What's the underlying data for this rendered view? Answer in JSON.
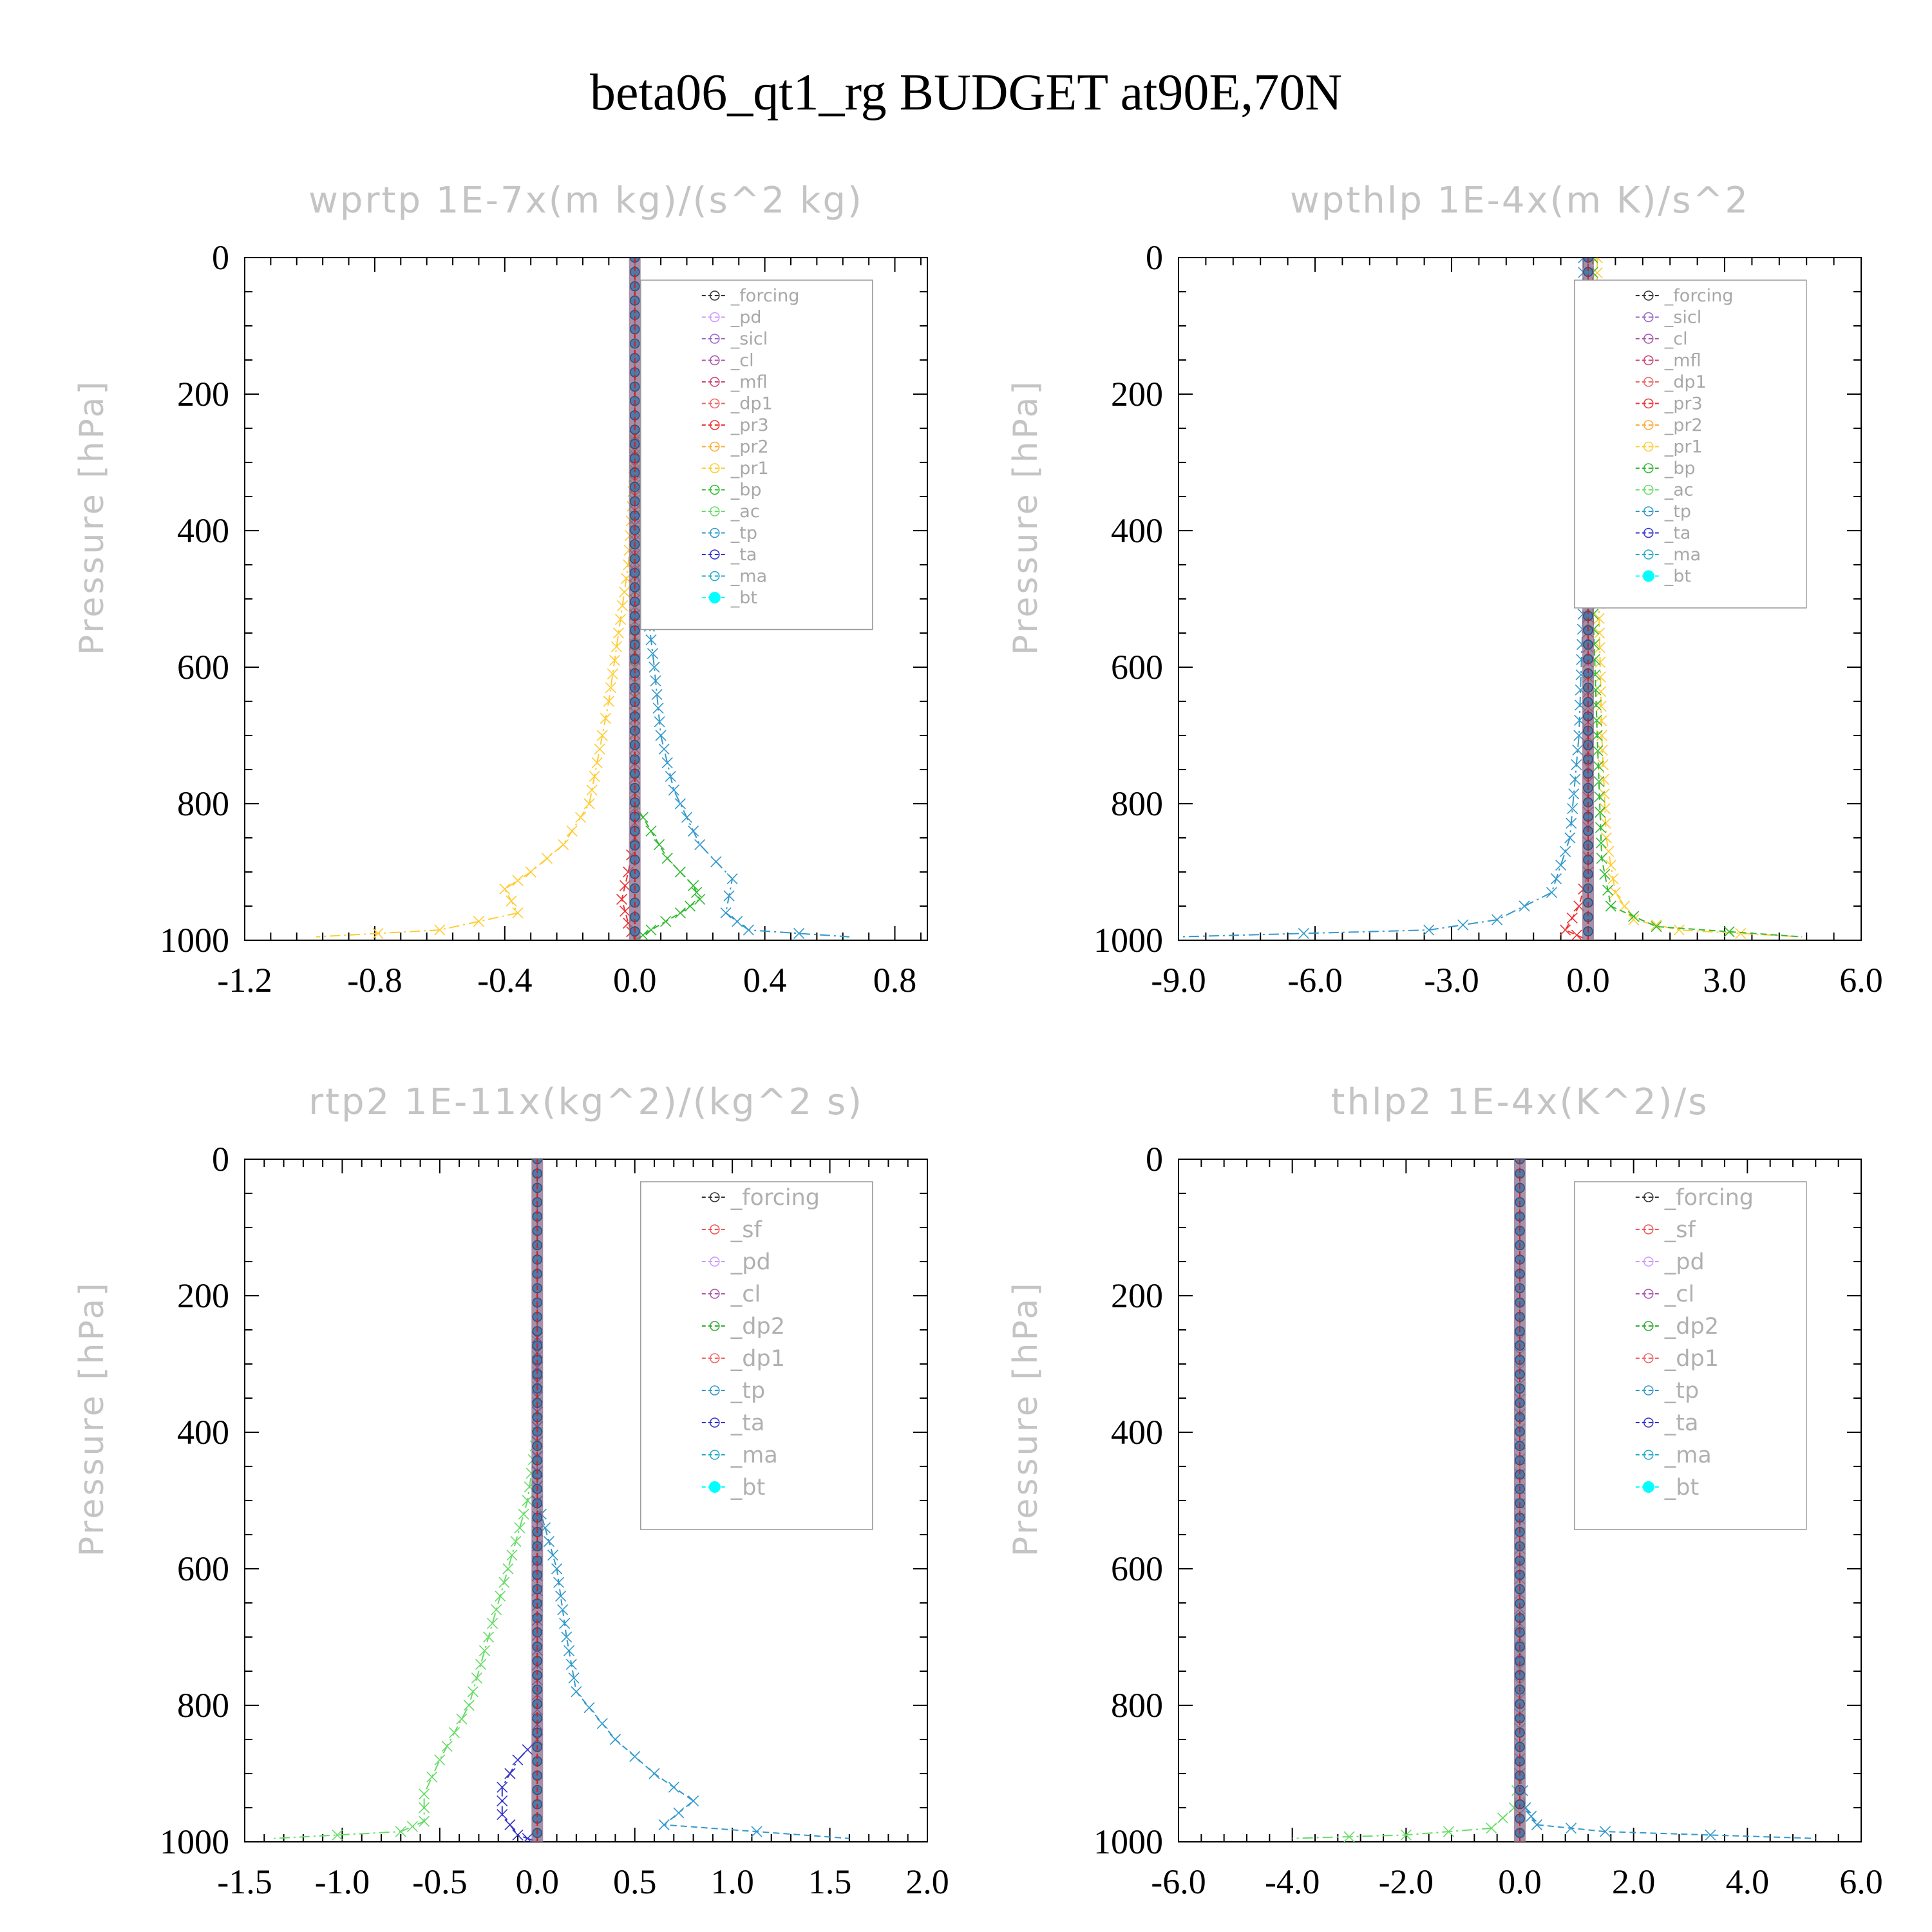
{
  "figure": {
    "title": "beta06_qt1_rg  BUDGET at90E,70N"
  },
  "colors": {
    "forcing": "#333333",
    "pd": "#cc99ff",
    "sicl": "#9966cc",
    "cl": "#aa55aa",
    "mfl": "#cc4477",
    "dp1": "#ee6666",
    "dp2": "#33aa33",
    "sf": "#ee5555",
    "pr3": "#ee3333",
    "pr2": "#ffaa33",
    "pr1": "#ffcc33",
    "bp": "#33bb33",
    "ac": "#66dd66",
    "tp": "#3399cc",
    "ta": "#3333cc",
    "ma": "#22aacc",
    "bt": "#00ffff"
  },
  "chart_data": [
    {
      "type": "line",
      "title": "wprtp   1E-7x(m kg)/(s^2 kg)",
      "ylabel": "Pressure [hPa]",
      "xlim": [
        -1.2,
        0.9
      ],
      "ylim": [
        1000,
        0
      ],
      "y_inverted": true,
      "xticks": [
        -1.2,
        -0.8,
        -0.4,
        0.0,
        0.4,
        0.8
      ],
      "xtick_labels": [
        "-1.2",
        "-0.8",
        "-0.4",
        "0.0",
        "0.4",
        "0.8"
      ],
      "yticks": [
        0,
        200,
        400,
        600,
        800,
        1000
      ],
      "ytick_labels": [
        "0",
        "200",
        "400",
        "600",
        "800",
        "1000"
      ],
      "legend_position": "upper-right",
      "legend": [
        "_forcing",
        "_pd",
        "_sicl",
        "_cl",
        "_mfl",
        "_dp1",
        "_pr3",
        "_pr2",
        "_pr1",
        "_bp",
        "_ac",
        "_tp",
        "_ta",
        "_ma",
        "_bt"
      ],
      "series": [
        {
          "name": "_pr1",
          "color": "pr1",
          "points": [
            [
              0,
              0
            ],
            [
              0,
              300
            ],
            [
              -0.02,
              450
            ],
            [
              -0.05,
              550
            ],
            [
              -0.08,
              650
            ],
            [
              -0.1,
              700
            ],
            [
              -0.14,
              800
            ],
            [
              -0.22,
              860
            ],
            [
              -0.32,
              900
            ],
            [
              -0.4,
              925
            ],
            [
              -0.36,
              960
            ],
            [
              -0.6,
              985
            ],
            [
              -0.98,
              995
            ]
          ]
        },
        {
          "name": "_bp",
          "color": "bp",
          "points": [
            [
              0,
              0
            ],
            [
              0,
              800
            ],
            [
              0.05,
              840
            ],
            [
              0.1,
              880
            ],
            [
              0.18,
              920
            ],
            [
              0.2,
              940
            ],
            [
              0.14,
              960
            ],
            [
              0.05,
              985
            ],
            [
              0,
              1000
            ]
          ]
        },
        {
          "name": "_tp",
          "color": "tp",
          "points": [
            [
              0,
              0
            ],
            [
              0,
              450
            ],
            [
              0.04,
              520
            ],
            [
              0.06,
              600
            ],
            [
              0.08,
              700
            ],
            [
              0.12,
              780
            ],
            [
              0.2,
              860
            ],
            [
              0.3,
              910
            ],
            [
              0.28,
              960
            ],
            [
              0.35,
              985
            ],
            [
              0.66,
              995
            ]
          ]
        },
        {
          "name": "_pr3",
          "color": "pr3",
          "points": [
            [
              0,
              0
            ],
            [
              0,
              850
            ],
            [
              -0.02,
              900
            ],
            [
              -0.04,
              940
            ],
            [
              -0.02,
              975
            ],
            [
              0,
              1000
            ]
          ]
        },
        {
          "name": "_forcing",
          "color": "forcing",
          "points": [
            [
              0,
              0
            ],
            [
              0,
              1000
            ]
          ]
        },
        {
          "name": "_bt",
          "color": "bt",
          "points": [
            [
              0,
              0
            ],
            [
              0,
              1000
            ]
          ]
        }
      ]
    },
    {
      "type": "line",
      "title": "wpthlp   1E-4x(m K)/s^2",
      "ylabel": "Pressure [hPa]",
      "xlim": [
        -9.0,
        6.0
      ],
      "ylim": [
        1000,
        0
      ],
      "y_inverted": true,
      "xticks": [
        -9.0,
        -6.0,
        -3.0,
        0.0,
        3.0,
        6.0
      ],
      "xtick_labels": [
        "-9.0",
        "-6.0",
        "-3.0",
        "0.0",
        "3.0",
        "6.0"
      ],
      "yticks": [
        0,
        200,
        400,
        600,
        800,
        1000
      ],
      "ytick_labels": [
        "0",
        "200",
        "400",
        "600",
        "800",
        "1000"
      ],
      "legend_position": "upper-right",
      "legend": [
        "_forcing",
        "_sicl",
        "_cl",
        "_mfl",
        "_dp1",
        "_pr3",
        "_pr2",
        "_pr1",
        "_bp",
        "_ac",
        "_tp",
        "_ta",
        "_ma",
        "_bt"
      ],
      "series": [
        {
          "name": "_pr1",
          "color": "pr1",
          "points": [
            [
              0.2,
              0
            ],
            [
              0.2,
              400
            ],
            [
              0.3,
              700
            ],
            [
              0.4,
              850
            ],
            [
              0.6,
              930
            ],
            [
              1.0,
              970
            ],
            [
              2.0,
              985
            ],
            [
              4.7,
              995
            ]
          ]
        },
        {
          "name": "_bp",
          "color": "bp",
          "points": [
            [
              0.1,
              0
            ],
            [
              0.1,
              500
            ],
            [
              0.2,
              700
            ],
            [
              0.3,
              880
            ],
            [
              0.5,
              950
            ],
            [
              1.5,
              980
            ],
            [
              4.7,
              995
            ]
          ]
        },
        {
          "name": "_tp",
          "color": "tp",
          "points": [
            [
              -0.1,
              0
            ],
            [
              -0.1,
              500
            ],
            [
              -0.2,
              700
            ],
            [
              -0.4,
              850
            ],
            [
              -0.8,
              930
            ],
            [
              -2.0,
              970
            ],
            [
              -3.5,
              985
            ],
            [
              -9.0,
              995
            ]
          ]
        },
        {
          "name": "_pr3",
          "color": "pr3",
          "points": [
            [
              0,
              0
            ],
            [
              0,
              900
            ],
            [
              -0.2,
              950
            ],
            [
              -0.5,
              985
            ],
            [
              0,
              1000
            ]
          ]
        },
        {
          "name": "_forcing",
          "color": "forcing",
          "points": [
            [
              0,
              0
            ],
            [
              0,
              1000
            ]
          ]
        },
        {
          "name": "_bt",
          "color": "bt",
          "points": [
            [
              0,
              0
            ],
            [
              0,
              1000
            ]
          ]
        }
      ]
    },
    {
      "type": "line",
      "title": "rtp2   1E-11x(kg^2)/(kg^2 s)",
      "ylabel": "Pressure [hPa]",
      "xlim": [
        -1.5,
        2.0
      ],
      "ylim": [
        1000,
        0
      ],
      "y_inverted": true,
      "xticks": [
        -1.5,
        -1.0,
        -0.5,
        0.0,
        0.5,
        1.0,
        1.5,
        2.0
      ],
      "xtick_labels": [
        "-1.5",
        "-1.0",
        "-0.5",
        "0.0",
        "0.5",
        "1.0",
        "1.5",
        "2.0"
      ],
      "yticks": [
        0,
        200,
        400,
        600,
        800,
        1000
      ],
      "ytick_labels": [
        "0",
        "200",
        "400",
        "600",
        "800",
        "1000"
      ],
      "legend_position": "upper-right",
      "legend": [
        "_forcing",
        "_sf",
        "_pd",
        "_cl",
        "_dp2",
        "_dp1",
        "_tp",
        "_ta",
        "_ma",
        "_bt"
      ],
      "series": [
        {
          "name": "_dp1",
          "color": "ac",
          "points": [
            [
              0,
              0
            ],
            [
              0,
              400
            ],
            [
              -0.05,
              500
            ],
            [
              -0.15,
              600
            ],
            [
              -0.25,
              700
            ],
            [
              -0.35,
              800
            ],
            [
              -0.5,
              880
            ],
            [
              -0.58,
              930
            ],
            [
              -0.58,
              970
            ],
            [
              -0.7,
              985
            ],
            [
              -1.35,
              995
            ]
          ]
        },
        {
          "name": "_tp",
          "color": "tp",
          "points": [
            [
              0,
              0
            ],
            [
              0,
              500
            ],
            [
              0.1,
              600
            ],
            [
              0.15,
              700
            ],
            [
              0.2,
              780
            ],
            [
              0.4,
              850
            ],
            [
              0.6,
              900
            ],
            [
              0.8,
              940
            ],
            [
              0.65,
              975
            ],
            [
              1.6,
              995
            ]
          ]
        },
        {
          "name": "_ta",
          "color": "ta",
          "points": [
            [
              0,
              0
            ],
            [
              0,
              850
            ],
            [
              -0.1,
              880
            ],
            [
              -0.18,
              920
            ],
            [
              -0.18,
              960
            ],
            [
              -0.1,
              990
            ],
            [
              0,
              1000
            ]
          ]
        },
        {
          "name": "_forcing",
          "color": "forcing",
          "points": [
            [
              0,
              0
            ],
            [
              0,
              1000
            ]
          ]
        },
        {
          "name": "_bt",
          "color": "bt",
          "points": [
            [
              0,
              0
            ],
            [
              0,
              1000
            ]
          ]
        }
      ]
    },
    {
      "type": "line",
      "title": "thlp2   1E-4x(K^2)/s",
      "ylabel": "Pressure [hPa]",
      "xlim": [
        -6.0,
        6.0
      ],
      "ylim": [
        1000,
        0
      ],
      "y_inverted": true,
      "xticks": [
        -6.0,
        -4.0,
        -2.0,
        0.0,
        2.0,
        4.0,
        6.0
      ],
      "xtick_labels": [
        "-6.0",
        "-4.0",
        "-2.0",
        "0.0",
        "2.0",
        "4.0",
        "6.0"
      ],
      "yticks": [
        0,
        200,
        400,
        600,
        800,
        1000
      ],
      "ytick_labels": [
        "0",
        "200",
        "400",
        "600",
        "800",
        "1000"
      ],
      "legend_position": "upper-right",
      "legend": [
        "_forcing",
        "_sf",
        "_pd",
        "_cl",
        "_dp2",
        "_dp1",
        "_tp",
        "_ta",
        "_ma",
        "_bt"
      ],
      "series": [
        {
          "name": "_dp1",
          "color": "ac",
          "points": [
            [
              0,
              0
            ],
            [
              0,
              900
            ],
            [
              -0.1,
              950
            ],
            [
              -0.5,
              980
            ],
            [
              -2.0,
              990
            ],
            [
              -4.0,
              995
            ]
          ]
        },
        {
          "name": "_tp",
          "color": "tp",
          "points": [
            [
              0,
              0
            ],
            [
              0,
              900
            ],
            [
              0.1,
              950
            ],
            [
              0.3,
              975
            ],
            [
              1.5,
              985
            ],
            [
              5.2,
              995
            ]
          ]
        },
        {
          "name": "_forcing",
          "color": "forcing",
          "points": [
            [
              0,
              0
            ],
            [
              0,
              1000
            ]
          ]
        },
        {
          "name": "_bt",
          "color": "bt",
          "points": [
            [
              0,
              0
            ],
            [
              0,
              1000
            ]
          ]
        }
      ]
    }
  ]
}
